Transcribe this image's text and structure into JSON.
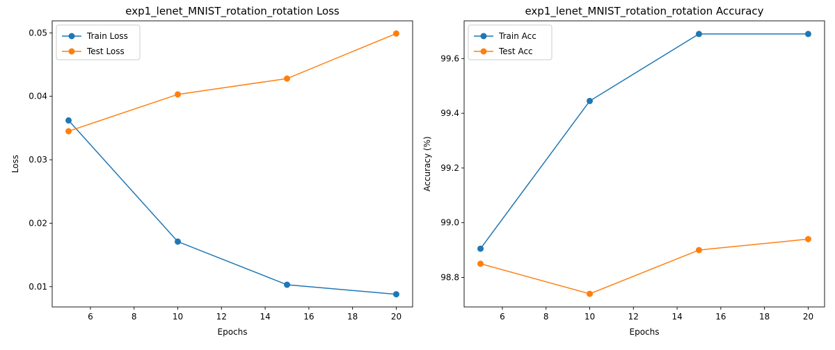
{
  "chart_data": [
    {
      "type": "line",
      "title": "exp1_lenet_MNIST_rotation_rotation Loss",
      "xlabel": "Epochs",
      "ylabel": "Loss",
      "x": [
        5,
        10,
        15,
        20
      ],
      "xlim": [
        4.25,
        20.75
      ],
      "ylim": [
        0.0068,
        0.0519
      ],
      "xticks": [
        6,
        8,
        10,
        12,
        14,
        16,
        18,
        20
      ],
      "yticks": [
        0.01,
        0.02,
        0.03,
        0.04,
        0.05
      ],
      "ytick_labels": [
        "0.01",
        "0.02",
        "0.03",
        "0.04",
        "0.05"
      ],
      "legend_position": "upper-left",
      "grid": false,
      "series": [
        {
          "name": "Train Loss",
          "color": "#1f77b4",
          "values": [
            0.0362,
            0.0171,
            0.0103,
            0.0088
          ]
        },
        {
          "name": "Test Loss",
          "color": "#ff7f0e",
          "values": [
            0.0345,
            0.0403,
            0.0428,
            0.0499
          ]
        }
      ]
    },
    {
      "type": "line",
      "title": "exp1_lenet_MNIST_rotation_rotation Accuracy",
      "xlabel": "Epochs",
      "ylabel": "Accuracy (%)",
      "x": [
        5,
        10,
        15,
        20
      ],
      "xlim": [
        4.25,
        20.75
      ],
      "ylim": [
        98.692,
        99.738
      ],
      "xticks": [
        6,
        8,
        10,
        12,
        14,
        16,
        18,
        20
      ],
      "yticks": [
        98.8,
        99.0,
        99.2,
        99.4,
        99.6
      ],
      "ytick_labels": [
        "98.8",
        "99.0",
        "99.2",
        "99.4",
        "99.6"
      ],
      "legend_position": "upper-left",
      "grid": false,
      "series": [
        {
          "name": "Train Acc",
          "color": "#1f77b4",
          "values": [
            98.905,
            99.445,
            99.69,
            99.69
          ]
        },
        {
          "name": "Test Acc",
          "color": "#ff7f0e",
          "values": [
            98.85,
            98.74,
            98.9,
            98.94
          ]
        }
      ]
    }
  ]
}
